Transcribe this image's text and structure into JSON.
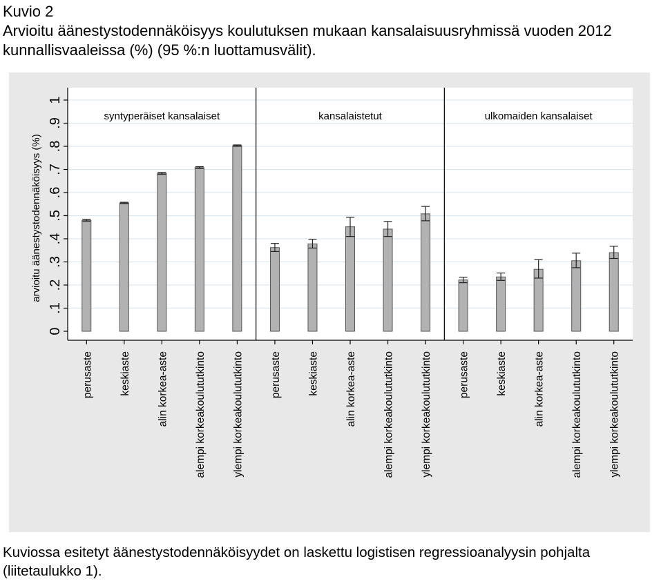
{
  "figure": {
    "label": "Kuvio 2",
    "title": "Arvioitu äänestystodennäköisyys koulutuksen mukaan kansalaisuusryhmissä vuoden 2012 kunnallisvaaleissa (%) (95 %:n luottamusvälit).",
    "note": "Kuviossa esitetyt äänestystodennäköisyydet on laskettu logistisen regressioanalyysin pohjalta (liitetaulukko 1)."
  },
  "colors": {
    "plot_bg": "#e8e8e8",
    "inner_bg": "#ffffff",
    "bar_fill": "#b2b2b2",
    "bar_stroke": "#555555",
    "grid": "#dde6ec",
    "axis": "#000000"
  },
  "chart_data": {
    "type": "bar",
    "ylabel": "arvioitu äänestystodennäköisyys (%)",
    "ylim": [
      0,
      1
    ],
    "yticks": [
      0,
      0.1,
      0.2,
      0.3,
      0.4,
      0.5,
      0.6,
      0.7,
      0.8,
      0.9,
      1
    ],
    "ytick_labels": [
      "0",
      ".1",
      ".2",
      ".3",
      ".4",
      ".5",
      ".6",
      ".7",
      ".8",
      ".9",
      "1"
    ],
    "grid": true,
    "error_bars": "95% confidence interval",
    "categories": [
      "perusaste",
      "keskiaste",
      "alin korkea-aste",
      "alempi korkeakoulututkinto",
      "ylempi korkeakoulututkinto"
    ],
    "panels": [
      {
        "name": "syntyperäiset kansalaiset",
        "values": [
          0.48,
          0.555,
          0.683,
          0.708,
          0.803
        ],
        "ci_low": [
          0.476,
          0.552,
          0.679,
          0.704,
          0.8
        ],
        "ci_high": [
          0.484,
          0.558,
          0.687,
          0.712,
          0.806
        ]
      },
      {
        "name": "kansalaistetut",
        "values": [
          0.362,
          0.378,
          0.452,
          0.442,
          0.508
        ],
        "ci_low": [
          0.345,
          0.36,
          0.41,
          0.41,
          0.478
        ],
        "ci_high": [
          0.38,
          0.398,
          0.493,
          0.475,
          0.54
        ]
      },
      {
        "name": "ulkomaiden kansalaiset",
        "values": [
          0.222,
          0.235,
          0.268,
          0.305,
          0.34
        ],
        "ci_low": [
          0.21,
          0.22,
          0.23,
          0.275,
          0.315
        ],
        "ci_high": [
          0.234,
          0.252,
          0.31,
          0.338,
          0.368
        ]
      }
    ]
  }
}
